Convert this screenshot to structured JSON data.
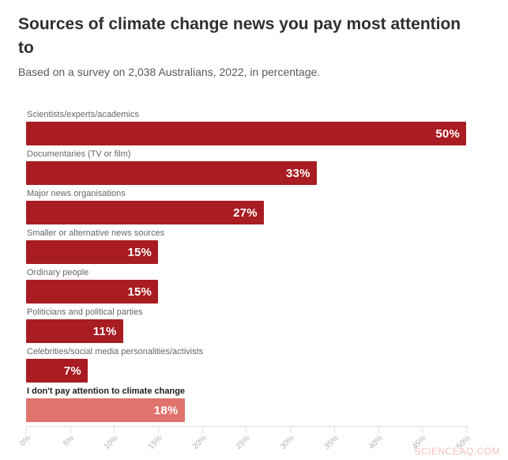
{
  "header": {
    "title": "Sources of climate change news you pay most attention to",
    "subtitle": "Based on a survey on 2,038 Australians, 2022, in percentage."
  },
  "chart_data": {
    "type": "bar",
    "orientation": "horizontal",
    "title": "Sources of climate change news you pay most attention to",
    "subtitle": "Based on a survey on 2,038 Australians, 2022, in percentage.",
    "categories": [
      "Scientists/experts/academics",
      "Documentaries (TV or film)",
      "Major news organisations",
      "Smaller or alternative news sources",
      "Ordinary people",
      "Politicians and political parties",
      "Celebrities/social media personalities/activists",
      "I don't pay attention to climate change"
    ],
    "values": [
      50,
      33,
      27,
      15,
      15,
      11,
      7,
      18
    ],
    "value_labels": [
      "50%",
      "33%",
      "27%",
      "15%",
      "15%",
      "11%",
      "7%",
      "18%"
    ],
    "bar_colors": [
      "#a81c22",
      "#a81c22",
      "#a81c22",
      "#a81c22",
      "#a81c22",
      "#a81c22",
      "#a81c22",
      "#e0736c"
    ],
    "category_label_colors": [
      "#666666",
      "#666666",
      "#666666",
      "#666666",
      "#666666",
      "#666666",
      "#666666",
      "#1d1d1d"
    ],
    "emphasized_categories": [
      false,
      false,
      false,
      false,
      false,
      false,
      false,
      true
    ],
    "xlabel": "",
    "ylabel": "",
    "axis": {
      "min": 0,
      "max": 50,
      "ticks": [
        "0%",
        "5%",
        "10%",
        "15%",
        "20%",
        "25%",
        "30%",
        "35%",
        "40%",
        "45%",
        "50%"
      ],
      "tick_rotation_deg": 45,
      "grid": false
    },
    "legend": null
  },
  "watermark": {
    "text": "SCIENCEAQ.COM"
  },
  "colors": {
    "bar_primary": "#a81c22",
    "bar_muted": "#e0736c",
    "value_text": "#ffffff",
    "axis_line": "#e0e0e0",
    "tick_text": "#b0b0b0",
    "title_text": "#2f2f2f",
    "subtitle_text": "#595959",
    "category_text": "#666666",
    "category_text_emphasis": "#1d1d1d",
    "watermark_text": "#e8736c",
    "background": "#ffffff"
  }
}
